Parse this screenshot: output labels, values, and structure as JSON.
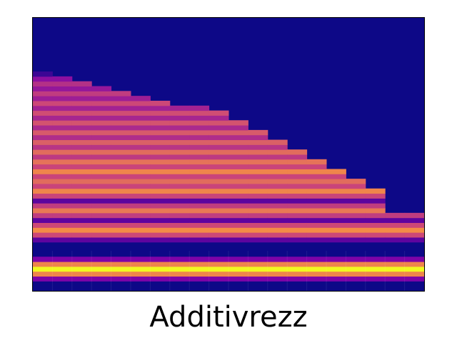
{
  "caption": "Additivrezz",
  "colors": {
    "background": "#0d0887",
    "colormap": "plasma",
    "frame": "#000000"
  },
  "chart_data": {
    "type": "heatmap",
    "colormap": "plasma",
    "title": "",
    "xlabel": "",
    "ylabel": "",
    "axes_visible": false,
    "grid": false,
    "time_frames": 20,
    "frequency_bins": 56,
    "band_cutoff_bin_by_frame": [
      44,
      43,
      42,
      41,
      40,
      39,
      38,
      37,
      37,
      36,
      34,
      32,
      30,
      28,
      26,
      24,
      22,
      20,
      15,
      15
    ],
    "bands": [
      {
        "center_bin": 4,
        "peak_intensity": 1.0
      },
      {
        "center_bin": 12,
        "peak_intensity": 0.72
      },
      {
        "center_bin": 16,
        "peak_intensity": 0.66
      },
      {
        "center_bin": 20,
        "peak_intensity": 0.7
      },
      {
        "center_bin": 22,
        "peak_intensity": 0.62
      },
      {
        "center_bin": 24,
        "peak_intensity": 0.7
      },
      {
        "center_bin": 26,
        "peak_intensity": 0.64
      },
      {
        "center_bin": 28,
        "peak_intensity": 0.62
      },
      {
        "center_bin": 30,
        "peak_intensity": 0.58
      },
      {
        "center_bin": 32,
        "peak_intensity": 0.56
      },
      {
        "center_bin": 34,
        "peak_intensity": 0.54
      },
      {
        "center_bin": 36,
        "peak_intensity": 0.52
      },
      {
        "center_bin": 38,
        "peak_intensity": 0.5
      },
      {
        "center_bin": 40,
        "peak_intensity": 0.46
      },
      {
        "center_bin": 42,
        "peak_intensity": 0.42
      }
    ]
  }
}
